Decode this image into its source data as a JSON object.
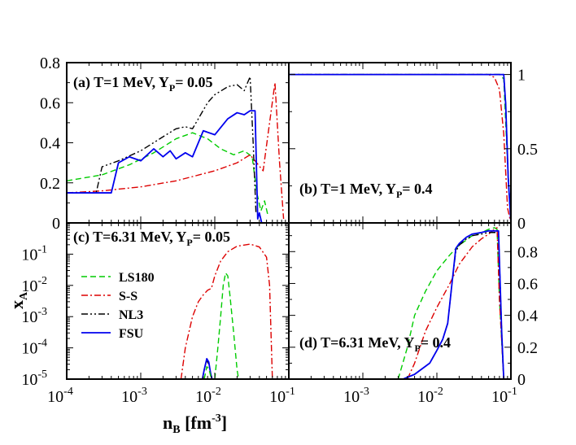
{
  "chart_data": {
    "type": "line",
    "axis_labels": {
      "x_main": "n",
      "x_sub": "B",
      "x_unit_pre": " [fm",
      "x_unit_exp": "-3",
      "x_unit_post": "]",
      "y_main": "x",
      "y_sub": "A"
    },
    "legend": [
      {
        "name": "LS180",
        "color": "#00cc00",
        "dash": "dashed"
      },
      {
        "name": "S-S",
        "color": "#dd0000",
        "dash": "dashdot"
      },
      {
        "name": "NL3",
        "color": "#000000",
        "dash": "dashdotdot"
      },
      {
        "name": "FSU",
        "color": "#0000ee",
        "dash": "solid"
      }
    ],
    "xticks_bottom_left": [
      {
        "base": "10",
        "exp": "-4"
      },
      {
        "base": "10",
        "exp": "-3"
      },
      {
        "base": "10",
        "exp": "-2"
      },
      {
        "base": "10",
        "exp": "-1"
      }
    ],
    "xticks_bottom_right": [
      {
        "base": "10",
        "exp": "-3"
      },
      {
        "base": "10",
        "exp": "-2"
      },
      {
        "base": "10",
        "exp": "-1"
      }
    ],
    "panels": [
      {
        "id": "a",
        "xscale": "log",
        "xlim": [
          0.0001,
          0.1
        ],
        "yscale": "linear",
        "ylim": [
          0,
          0.8
        ],
        "yticks": [
          "0",
          "0.2",
          "0.4",
          "0.6",
          "0.8"
        ],
        "ytick_values": [
          0,
          0.2,
          0.4,
          0.6,
          0.8
        ],
        "yaxis_side": "left",
        "label": {
          "pre": "(a) T=1 MeV, Y",
          "sub": "P",
          "post": "= 0.05"
        },
        "series": [
          {
            "name": "LS180",
            "x": [
              0.0001,
              0.0003,
              0.0007,
              0.0015,
              0.003,
              0.005,
              0.008,
              0.012,
              0.018,
              0.025,
              0.032,
              0.037,
              0.042,
              0.047,
              0.052
            ],
            "y": [
              0.21,
              0.24,
              0.29,
              0.35,
              0.42,
              0.45,
              0.42,
              0.37,
              0.34,
              0.36,
              0.33,
              0.15,
              0.06,
              0.11,
              0.04
            ]
          },
          {
            "name": "S-S",
            "x": [
              0.0001,
              0.0003,
              0.001,
              0.003,
              0.01,
              0.02,
              0.03,
              0.045,
              0.055,
              0.065,
              0.075,
              0.085
            ],
            "y": [
              0.15,
              0.16,
              0.18,
              0.21,
              0.26,
              0.3,
              0.34,
              0.26,
              0.5,
              0.7,
              0.3,
              0.02
            ]
          },
          {
            "name": "NL3",
            "x": [
              0.0001,
              0.00025,
              0.0003,
              0.0005,
              0.001,
              0.002,
              0.003,
              0.004,
              0.005,
              0.006,
              0.008,
              0.01,
              0.015,
              0.02,
              0.025,
              0.03,
              0.033,
              0.036
            ],
            "y": [
              0.15,
              0.15,
              0.28,
              0.31,
              0.36,
              0.43,
              0.47,
              0.48,
              0.47,
              0.52,
              0.6,
              0.64,
              0.68,
              0.69,
              0.66,
              0.73,
              0.4,
              0.05
            ]
          },
          {
            "name": "FSU",
            "x": [
              0.0001,
              0.0004,
              0.0005,
              0.0007,
              0.001,
              0.0015,
              0.002,
              0.0025,
              0.003,
              0.004,
              0.005,
              0.007,
              0.01,
              0.015,
              0.02,
              0.025,
              0.03,
              0.035,
              0.038,
              0.04,
              0.043
            ],
            "y": [
              0.15,
              0.15,
              0.3,
              0.33,
              0.31,
              0.37,
              0.33,
              0.36,
              0.32,
              0.35,
              0.33,
              0.46,
              0.44,
              0.52,
              0.55,
              0.54,
              0.56,
              0.56,
              0.02,
              0.05,
              0.0
            ]
          }
        ]
      },
      {
        "id": "b",
        "xscale": "log",
        "xlim": [
          0.0001,
          0.1
        ],
        "yscale": "linear",
        "ylim": [
          0,
          1.08
        ],
        "yticks": [
          "0",
          "0.5",
          "1"
        ],
        "ytick_values": [
          0,
          0.5,
          1
        ],
        "yaxis_side": "right",
        "label": {
          "pre": "(b) T=1 MeV, Y",
          "sub": "P",
          "post": "= 0.4"
        },
        "series": [
          {
            "name": "S-S",
            "x": [
              0.0001,
              0.001,
              0.01,
              0.05,
              0.06,
              0.07,
              0.08,
              0.09,
              0.1
            ],
            "y": [
              1.0,
              1.0,
              1.0,
              1.0,
              0.98,
              0.9,
              0.6,
              0.1,
              0.0
            ]
          },
          {
            "name": "LS180",
            "x": [
              0.0001,
              0.001,
              0.01,
              0.07,
              0.08,
              0.09,
              0.1
            ],
            "y": [
              1.0,
              1.0,
              1.0,
              1.0,
              0.97,
              0.4,
              0.0
            ]
          },
          {
            "name": "NL3",
            "x": [
              0.0001,
              0.001,
              0.01,
              0.08,
              0.085,
              0.092,
              0.1
            ],
            "y": [
              1.0,
              1.0,
              1.0,
              1.0,
              0.8,
              0.3,
              0.0
            ]
          },
          {
            "name": "FSU",
            "x": [
              0.0001,
              0.001,
              0.01,
              0.08,
              0.085,
              0.092,
              0.1
            ],
            "y": [
              1.0,
              1.0,
              1.0,
              1.0,
              0.8,
              0.3,
              0.0
            ]
          }
        ]
      },
      {
        "id": "c",
        "xscale": "log",
        "xlim": [
          0.0001,
          0.1
        ],
        "yscale": "log",
        "ylim": [
          1e-05,
          1
        ],
        "yticks_log": [
          {
            "base": "10",
            "exp": "-5",
            "v": 1e-05
          },
          {
            "base": "10",
            "exp": "-4",
            "v": 0.0001
          },
          {
            "base": "10",
            "exp": "-3",
            "v": 0.001
          },
          {
            "base": "10",
            "exp": "-2",
            "v": 0.01
          },
          {
            "base": "10",
            "exp": "-1",
            "v": 0.1
          }
        ],
        "yaxis_side": "left",
        "label": {
          "pre": "(c) T=6.31 MeV, Y",
          "sub": "P",
          "post": "= 0.05"
        },
        "series": [
          {
            "name": "S-S",
            "x": [
              0.0035,
              0.004,
              0.005,
              0.006,
              0.007,
              0.008,
              0.009,
              0.01,
              0.012,
              0.015,
              0.02,
              0.03,
              0.04,
              0.05,
              0.055,
              0.06
            ],
            "y": [
              1e-05,
              0.0001,
              0.001,
              0.003,
              0.005,
              0.007,
              0.008,
              0.02,
              0.06,
              0.12,
              0.18,
              0.21,
              0.17,
              0.08,
              0.01,
              1e-05
            ]
          },
          {
            "name": "LS180",
            "x": [
              0.01,
              0.011,
              0.012,
              0.013,
              0.014,
              0.015,
              0.016,
              0.018,
              0.02,
              0.021
            ],
            "y": [
              1e-05,
              0.0001,
              0.001,
              0.01,
              0.025,
              0.02,
              0.005,
              0.0003,
              2e-05,
              1e-05
            ]
          },
          {
            "name": "NL3",
            "x": [
              0.0068,
              0.0072,
              0.0078,
              0.0083,
              0.0088,
              0.0092
            ],
            "y": [
              1e-05,
              2e-05,
              4e-05,
              3e-05,
              1.5e-05,
              1e-05
            ]
          },
          {
            "name": "FSU",
            "x": [
              0.0068,
              0.0072,
              0.0078,
              0.0083,
              0.0088,
              0.0092
            ],
            "y": [
              1e-05,
              2e-05,
              4.5e-05,
              3.5e-05,
              1.5e-05,
              1e-05
            ]
          },
          {
            "name": "LS180",
            "x": [
              0.0072,
              0.0078,
              0.0084,
              0.009
            ],
            "y": [
              1e-05,
              2.5e-05,
              2e-05,
              1e-05
            ]
          }
        ]
      },
      {
        "id": "d",
        "xscale": "log",
        "xlim": [
          0.0001,
          0.1
        ],
        "yscale": "linear",
        "ylim": [
          0,
          0.98
        ],
        "yticks": [
          "0",
          "0.2",
          "0.4",
          "0.6",
          "0.8"
        ],
        "ytick_values": [
          0,
          0.2,
          0.4,
          0.6,
          0.8
        ],
        "yaxis_side": "right",
        "label": {
          "pre": "(d) T=6.31 MeV, Y",
          "sub": "P",
          "post": "= 0.4"
        },
        "series": [
          {
            "name": "LS180",
            "x": [
              0.003,
              0.004,
              0.005,
              0.007,
              0.01,
              0.015,
              0.02,
              0.03,
              0.04,
              0.05,
              0.06,
              0.065,
              0.07,
              0.08
            ],
            "y": [
              0.0,
              0.2,
              0.4,
              0.55,
              0.68,
              0.78,
              0.84,
              0.9,
              0.92,
              0.94,
              0.95,
              0.94,
              0.5,
              0.0
            ]
          },
          {
            "name": "S-S",
            "x": [
              0.004,
              0.005,
              0.007,
              0.01,
              0.015,
              0.02,
              0.03,
              0.04,
              0.05,
              0.06,
              0.065,
              0.07,
              0.08
            ],
            "y": [
              0.0,
              0.1,
              0.3,
              0.45,
              0.6,
              0.72,
              0.83,
              0.88,
              0.91,
              0.94,
              0.95,
              0.5,
              0.0
            ]
          },
          {
            "name": "NL3",
            "x": [
              0.0035,
              0.005,
              0.008,
              0.01,
              0.012,
              0.014,
              0.016,
              0.018,
              0.02,
              0.025,
              0.03,
              0.04,
              0.05,
              0.06,
              0.068,
              0.075,
              0.08
            ],
            "y": [
              0.0,
              0.03,
              0.1,
              0.18,
              0.25,
              0.35,
              0.6,
              0.8,
              0.84,
              0.88,
              0.9,
              0.91,
              0.92,
              0.92,
              0.92,
              0.3,
              0.0
            ]
          },
          {
            "name": "FSU",
            "x": [
              0.0035,
              0.005,
              0.008,
              0.01,
              0.012,
              0.014,
              0.016,
              0.018,
              0.02,
              0.025,
              0.03,
              0.04,
              0.05,
              0.06,
              0.068,
              0.075,
              0.08
            ],
            "y": [
              0.0,
              0.03,
              0.1,
              0.18,
              0.25,
              0.35,
              0.6,
              0.82,
              0.85,
              0.89,
              0.91,
              0.92,
              0.93,
              0.93,
              0.93,
              0.3,
              0.0
            ]
          }
        ]
      }
    ]
  }
}
